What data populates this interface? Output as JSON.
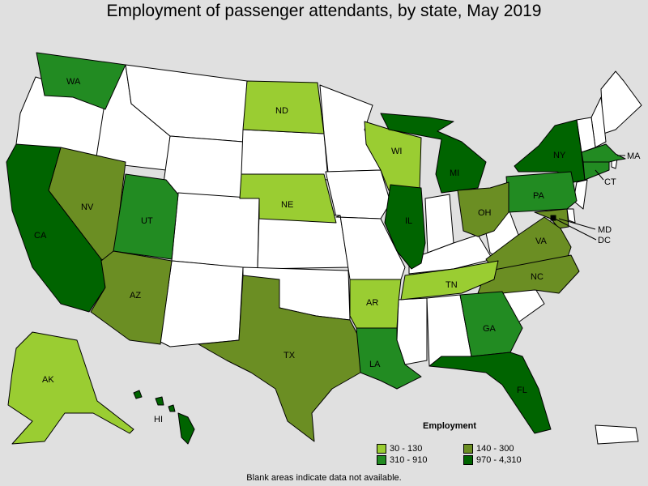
{
  "title": "Employment of passenger attendants, by state, May 2019",
  "footnote": "Blank areas indicate data not available.",
  "legend": {
    "title": "Employment",
    "items": [
      {
        "label": "30 - 130",
        "color": "#9acd32"
      },
      {
        "label": "140 - 300",
        "color": "#6b8e23"
      },
      {
        "label": "310 - 910",
        "color": "#228b22"
      },
      {
        "label": "970 - 4,310",
        "color": "#006400"
      }
    ]
  },
  "colors": {
    "no_data": "#ffffff",
    "background": "#e0e0e0"
  },
  "state_labels": {
    "WA": "WA",
    "ND": "ND",
    "WI": "WI",
    "MI": "MI",
    "NY": "NY",
    "MA": "MA",
    "CT": "CT",
    "PA": "PA",
    "NE": "NE",
    "NV": "NV",
    "UT": "UT",
    "IL": "IL",
    "OH": "OH",
    "MD": "MD",
    "DC": "DC",
    "VA": "VA",
    "CA": "CA",
    "AZ": "AZ",
    "NC": "NC",
    "TN": "TN",
    "AR": "AR",
    "GA": "GA",
    "TX": "TX",
    "LA": "LA",
    "AK": "AK",
    "FL": "FL",
    "HI": "HI"
  },
  "state_classes": {
    "WA": 3,
    "ND": 1,
    "WI": 1,
    "MI": 4,
    "NY": 4,
    "MA": 3,
    "CT": 3,
    "PA": 3,
    "NE": 1,
    "NV": 2,
    "UT": 3,
    "IL": 4,
    "OH": 2,
    "MD": 2,
    "DC": 4,
    "VA": 2,
    "CA": 4,
    "AZ": 2,
    "NC": 2,
    "TN": 1,
    "AR": 1,
    "GA": 3,
    "TX": 2,
    "LA": 3,
    "AK": 1,
    "FL": 4,
    "HI": 4
  }
}
